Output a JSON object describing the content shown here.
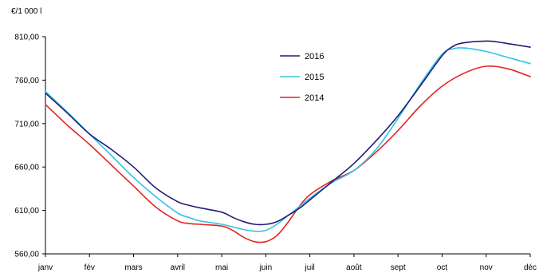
{
  "chart_data": {
    "type": "line",
    "title": "",
    "ylabel": "€/1 000 l",
    "xlabel": "",
    "categories": [
      "janv",
      "fév",
      "mars",
      "avril",
      "mai",
      "juin",
      "juil",
      "août",
      "sept",
      "oct",
      "nov",
      "déc"
    ],
    "y_ticks": [
      "560,00",
      "610,00",
      "660,00",
      "710,00",
      "760,00",
      "810,00"
    ],
    "y_tick_values": [
      560,
      610,
      660,
      710,
      760,
      810
    ],
    "ylim": [
      560,
      810
    ],
    "grid": false,
    "legend_position": "top-center",
    "series": [
      {
        "name": "2016",
        "color": "#1f1f78",
        "x": [
          0,
          0.5,
          1,
          1.5,
          2,
          2.5,
          3,
          3.25,
          3.5,
          4,
          4.25,
          4.5,
          4.75,
          5,
          5.25,
          5.5,
          5.75,
          6,
          6.5,
          7,
          7.5,
          8,
          8.5,
          9,
          9.25,
          9.5,
          10,
          10.25,
          10.5,
          11
        ],
        "y": [
          745,
          722,
          698,
          680,
          660,
          636,
          620,
          616,
          613,
          608,
          602,
          597,
          594,
          594,
          597,
          604,
          612,
          622,
          643,
          664,
          690,
          719,
          753,
          788,
          799,
          803,
          805,
          804,
          802,
          798
        ]
      },
      {
        "name": "2015",
        "color": "#33c2e5",
        "x": [
          0,
          0.5,
          1,
          1.5,
          2,
          2.5,
          3,
          3.25,
          3.5,
          4,
          4.25,
          4.5,
          4.75,
          5,
          5.25,
          5.5,
          5.75,
          6,
          6.5,
          7,
          7.5,
          8,
          8.5,
          9,
          9.25,
          9.5,
          10,
          10.5,
          11
        ],
        "y": [
          747,
          723,
          698,
          673,
          648,
          626,
          607,
          602,
          598,
          594,
          591,
          588,
          586,
          587,
          594,
          604,
          614,
          624,
          642,
          656,
          680,
          716,
          755,
          790,
          796,
          797,
          793,
          786,
          779
        ]
      },
      {
        "name": "2014",
        "color": "#e52222",
        "x": [
          0,
          0.5,
          1,
          1.5,
          2,
          2.5,
          3,
          3.25,
          3.5,
          4,
          4.25,
          4.5,
          4.75,
          5,
          5.25,
          5.5,
          5.75,
          6,
          6.5,
          7,
          7.5,
          8,
          8.5,
          9,
          9.5,
          10,
          10.5,
          11
        ],
        "y": [
          732,
          708,
          686,
          662,
          638,
          614,
          598,
          595,
          594,
          592,
          587,
          579,
          574,
          574,
          581,
          596,
          614,
          628,
          644,
          656,
          677,
          702,
          730,
          753,
          768,
          776,
          773,
          764
        ]
      }
    ]
  }
}
